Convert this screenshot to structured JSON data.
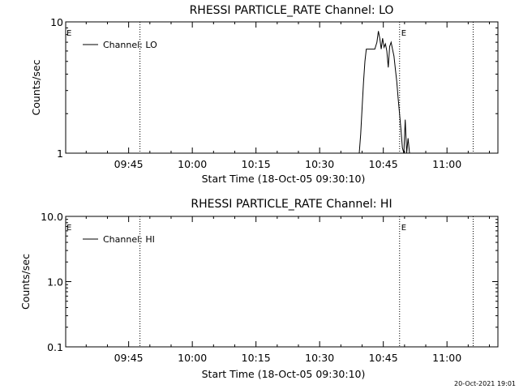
{
  "footer": {
    "timestamp": "20-Oct-2021 19:01"
  },
  "chart_data": [
    {
      "type": "line",
      "title": "RHESSI PARTICLE_RATE Channel: LO",
      "xlabel": "Start Time (18-Oct-05 09:30:10)",
      "ylabel": "Counts/sec",
      "yscale": "log",
      "ylim": [
        1,
        10
      ],
      "xlim": [
        "09:30:10",
        "11:12:00"
      ],
      "yticks": [
        "1",
        "10"
      ],
      "xticks": [
        "09:45",
        "10:00",
        "10:15",
        "10:30",
        "10:45",
        "11:00"
      ],
      "grid": false,
      "legend_position": "top-left",
      "markers": [
        {
          "time": "09:47:40",
          "label": ""
        },
        {
          "time": "10:48:50",
          "label": "E"
        },
        {
          "time": "11:06:10",
          "label": ""
        }
      ],
      "left_marker_label": "E",
      "series": [
        {
          "name": "Channel: LO",
          "color": "#000000",
          "points": [
            [
              "10:39:20",
              1.0
            ],
            [
              "10:39:40",
              1.4
            ],
            [
              "10:40:00",
              2.2
            ],
            [
              "10:40:20",
              3.5
            ],
            [
              "10:40:40",
              5.0
            ],
            [
              "10:41:00",
              6.2
            ],
            [
              "10:42:00",
              6.2
            ],
            [
              "10:43:00",
              6.2
            ],
            [
              "10:43:30",
              7.0
            ],
            [
              "10:43:50",
              8.5
            ],
            [
              "10:44:10",
              7.5
            ],
            [
              "10:44:30",
              6.2
            ],
            [
              "10:44:50",
              7.5
            ],
            [
              "10:45:10",
              6.4
            ],
            [
              "10:45:30",
              6.8
            ],
            [
              "10:45:50",
              6.0
            ],
            [
              "10:46:10",
              4.5
            ],
            [
              "10:46:30",
              6.5
            ],
            [
              "10:46:50",
              7.0
            ],
            [
              "10:47:10",
              6.2
            ],
            [
              "10:47:30",
              5.5
            ],
            [
              "10:47:50",
              4.4
            ],
            [
              "10:48:10",
              3.5
            ],
            [
              "10:48:30",
              2.6
            ],
            [
              "10:48:50",
              2.0
            ],
            [
              "10:49:10",
              1.5
            ],
            [
              "10:49:30",
              1.1
            ],
            [
              "10:49:50",
              1.0
            ],
            [
              "10:50:10",
              1.8
            ],
            [
              "10:50:30",
              1.0
            ],
            [
              "10:50:50",
              1.3
            ],
            [
              "10:51:10",
              1.0
            ]
          ]
        }
      ]
    },
    {
      "type": "line",
      "title": "RHESSI PARTICLE_RATE Channel: HI",
      "xlabel": "Start Time (18-Oct-05 09:30:10)",
      "ylabel": "Counts/sec",
      "yscale": "log",
      "ylim": [
        0.1,
        10
      ],
      "xlim": [
        "09:30:10",
        "11:12:00"
      ],
      "yticks": [
        "0.1",
        "1.0",
        "10.0"
      ],
      "xticks": [
        "09:45",
        "10:00",
        "10:15",
        "10:30",
        "10:45",
        "11:00"
      ],
      "grid": false,
      "legend_position": "top-left",
      "markers": [
        {
          "time": "09:47:40",
          "label": ""
        },
        {
          "time": "10:48:50",
          "label": "E"
        },
        {
          "time": "11:06:10",
          "label": ""
        }
      ],
      "left_marker_label": "E",
      "series": [
        {
          "name": "Channel: HI",
          "color": "#000000",
          "points": []
        }
      ]
    }
  ]
}
